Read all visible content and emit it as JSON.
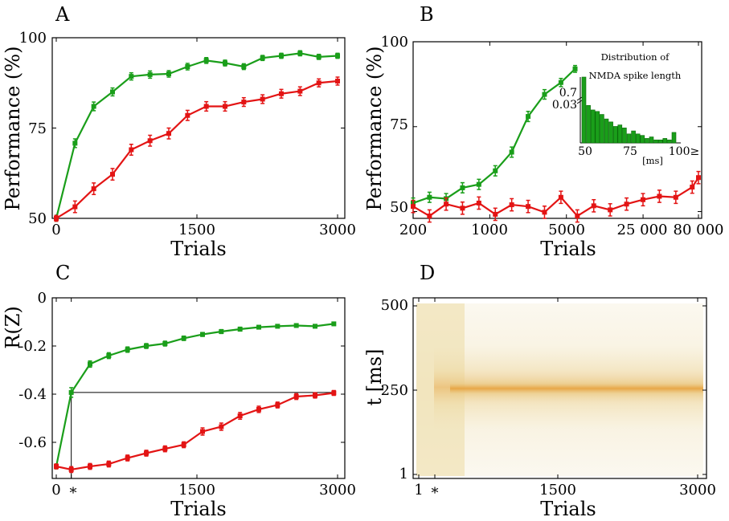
{
  "colors": {
    "green": "#1a9e1a",
    "red": "#e31414",
    "heat_low": "#efe4b8",
    "heat_mid": "#e8c77a",
    "heat_high": "#e69a2e"
  },
  "chart_data": [
    {
      "panel": "A",
      "type": "line",
      "xlabel": "Trials",
      "ylabel": "Performance (%)",
      "xlim": [
        0,
        3000
      ],
      "ylim": [
        50,
        100
      ],
      "xticks": [
        "0",
        "1500",
        "3000"
      ],
      "yticks": [
        "50",
        "75",
        "100"
      ],
      "series": [
        {
          "color": "green",
          "x": [
            0,
            200,
            400,
            600,
            800,
            1000,
            1200,
            1400,
            1600,
            1800,
            2000,
            2200,
            2400,
            2600,
            2800,
            3000
          ],
          "y": [
            50,
            70.8,
            81,
            85,
            89.3,
            89.8,
            90,
            92,
            93.7,
            93,
            92,
            94.4,
            95,
            95.7,
            94.7,
            95
          ],
          "err": [
            0.8,
            1.2,
            1.2,
            1.1,
            1.0,
            1.0,
            0.9,
            0.9,
            0.8,
            0.8,
            0.8,
            0.7,
            0.7,
            0.7,
            0.7,
            0.7
          ]
        },
        {
          "color": "red",
          "x": [
            0,
            200,
            400,
            600,
            800,
            1000,
            1200,
            1400,
            1600,
            1800,
            2000,
            2200,
            2400,
            2600,
            2800,
            3000
          ],
          "y": [
            50,
            53.2,
            58.2,
            62.2,
            69,
            71.5,
            73.5,
            78.5,
            81,
            81,
            82.2,
            83,
            84.5,
            85.2,
            87.5,
            88
          ],
          "err": [
            0.8,
            1.6,
            1.6,
            1.6,
            1.5,
            1.5,
            1.5,
            1.4,
            1.3,
            1.3,
            1.2,
            1.2,
            1.2,
            1.2,
            1.1,
            1.1
          ]
        }
      ]
    },
    {
      "panel": "B",
      "type": "line",
      "xlabel": "Trials",
      "ylabel": "Performance (%)",
      "xscale": "log",
      "xlim": [
        200,
        80000
      ],
      "ylim": [
        48,
        100
      ],
      "xticks": [
        "200",
        "1000",
        "5000",
        "25 000",
        "80 000"
      ],
      "yticks": [
        "50",
        "75",
        "100"
      ],
      "series": [
        {
          "color": "green",
          "x": [
            200,
            282,
            400,
            564,
            796,
            1123,
            1585,
            2237,
            3157,
            4456,
            6000
          ],
          "y": [
            52.5,
            54.2,
            53.8,
            57,
            58,
            62,
            67.5,
            78,
            84.5,
            88,
            92
          ],
          "err": [
            1.5,
            1.5,
            1.5,
            1.5,
            1.5,
            1.5,
            1.5,
            1.5,
            1.4,
            1.2,
            1.0
          ]
        },
        {
          "color": "red",
          "x": [
            200,
            282,
            400,
            564,
            796,
            1123,
            1585,
            2237,
            3157,
            4456,
            6289,
            8877,
            12530,
            17685,
            24961,
            35231,
            49727,
            70187,
            80000
          ],
          "y": [
            51.5,
            48.7,
            52.2,
            51,
            52.5,
            49.2,
            52,
            51.5,
            49.8,
            54.2,
            48.7,
            51.7,
            50.5,
            52.2,
            53.5,
            54.5,
            54.2,
            57.2,
            60
          ],
          "err": [
            1.8,
            1.8,
            1.8,
            1.8,
            1.8,
            1.8,
            1.8,
            1.8,
            1.8,
            1.8,
            1.8,
            1.8,
            1.8,
            1.8,
            1.8,
            1.8,
            1.8,
            1.8,
            1.8
          ]
        }
      ],
      "inset": {
        "type": "bar",
        "title_lines": [
          "Distribution of",
          "NMDA spike length"
        ],
        "xlabel": "[ms]",
        "xticks": [
          "50",
          "75",
          "100≥"
        ],
        "yticks": [
          "0.7",
          "0.03"
        ],
        "bins_start_ms": 50,
        "bin_width_ms": 2.5,
        "values": [
          0.7,
          0.025,
          0.022,
          0.021,
          0.019,
          0.016,
          0.014,
          0.011,
          0.012,
          0.01,
          0.006,
          0.008,
          0.006,
          0.005,
          0.003,
          0.004,
          0.002,
          0.002,
          0.003,
          0.002,
          0.007
        ]
      }
    },
    {
      "panel": "C",
      "type": "line",
      "xlabel": "Trials",
      "ylabel": "R(Z)",
      "xlim": [
        0,
        3000
      ],
      "ylim": [
        -0.75,
        0
      ],
      "xticks": [
        "0",
        "*",
        "1500",
        "3000"
      ],
      "yticks": [
        "0",
        "-0.2",
        "-0.4",
        "-0.6"
      ],
      "reference_level": -0.393,
      "series": [
        {
          "color": "green",
          "x": [
            0,
            160,
            360,
            560,
            760,
            960,
            1160,
            1360,
            1560,
            1760,
            1960,
            2160,
            2360,
            2560,
            2760,
            2960
          ],
          "y": [
            -0.7,
            -0.393,
            -0.275,
            -0.24,
            -0.215,
            -0.2,
            -0.19,
            -0.168,
            -0.152,
            -0.14,
            -0.13,
            -0.122,
            -0.118,
            -0.115,
            -0.118,
            -0.108
          ],
          "err": [
            0.01,
            0.02,
            0.013,
            0.012,
            0.011,
            0.01,
            0.01,
            0.009,
            0.008,
            0.008,
            0.008,
            0.007,
            0.007,
            0.007,
            0.007,
            0.007
          ]
        },
        {
          "color": "red",
          "x": [
            0,
            160,
            360,
            560,
            760,
            960,
            1160,
            1360,
            1560,
            1760,
            1960,
            2160,
            2360,
            2560,
            2760,
            2960
          ],
          "y": [
            -0.7,
            -0.713,
            -0.7,
            -0.69,
            -0.665,
            -0.645,
            -0.627,
            -0.61,
            -0.555,
            -0.535,
            -0.49,
            -0.463,
            -0.445,
            -0.41,
            -0.405,
            -0.395
          ],
          "err": [
            0.01,
            0.012,
            0.012,
            0.012,
            0.012,
            0.012,
            0.012,
            0.012,
            0.015,
            0.015,
            0.014,
            0.013,
            0.012,
            0.012,
            0.011,
            0.01
          ]
        }
      ]
    },
    {
      "panel": "D",
      "type": "heatmap",
      "xlabel": "Trials",
      "ylabel": "t [ms]",
      "xlim": [
        1,
        3000
      ],
      "ylim": [
        1,
        500
      ],
      "xticks": [
        "1",
        "*",
        "1500",
        "3000"
      ],
      "yticks": [
        "1",
        "250",
        "500"
      ],
      "description_values": {
        "dense_band_center_ms": 250,
        "dense_band_start_trial": 160
      }
    }
  ]
}
